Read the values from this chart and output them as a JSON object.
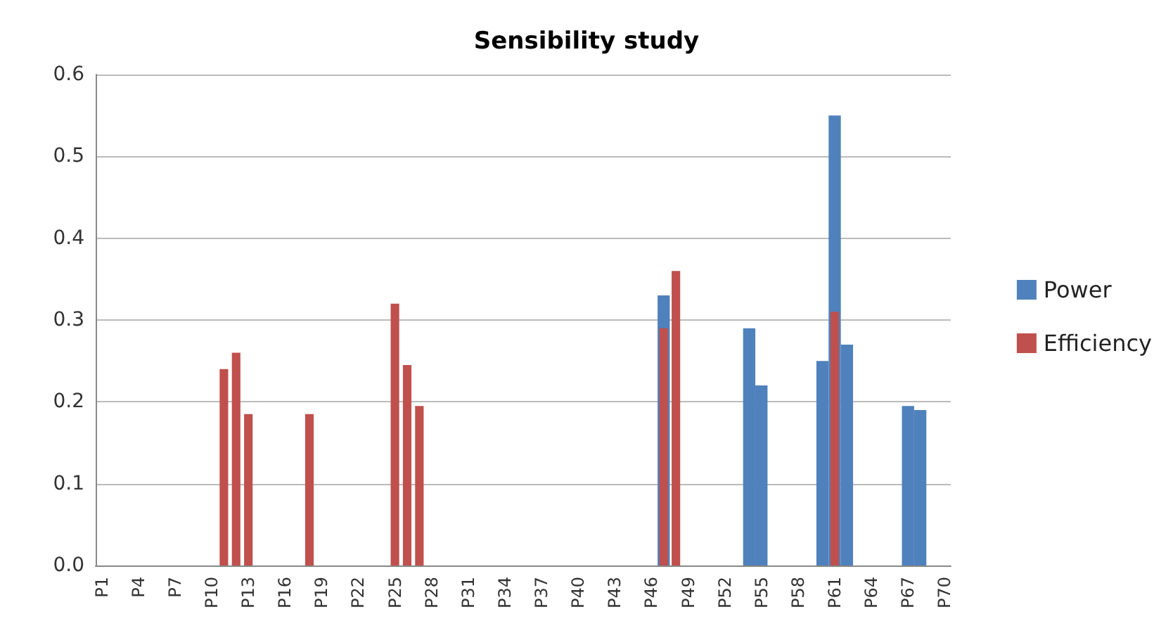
{
  "chart_data": {
    "type": "bar",
    "title": "Sensibility study",
    "categories": [
      "P1",
      null,
      null,
      "P4",
      null,
      null,
      "P7",
      null,
      null,
      "P10",
      null,
      null,
      "P13",
      null,
      null,
      "P16",
      null,
      null,
      "P19",
      null,
      null,
      "P22",
      null,
      null,
      "P25",
      null,
      null,
      "P28",
      null,
      null,
      "P31",
      null,
      null,
      "P34",
      null,
      null,
      "P37",
      null,
      null,
      "P40",
      null,
      null,
      "P43",
      null,
      null,
      "P46",
      null,
      null,
      "P49",
      null,
      null,
      "P52",
      null,
      null,
      "P55",
      null,
      null,
      "P58",
      null,
      null,
      "P61",
      null,
      null,
      "P64",
      null,
      null,
      "P67",
      null,
      null,
      "P70"
    ],
    "series": [
      {
        "name": "Power",
        "color": "#4f81bd",
        "values": [
          0,
          0,
          0,
          0,
          0,
          0,
          0,
          0,
          0,
          0,
          0,
          0,
          0,
          0,
          0,
          0,
          0,
          0,
          0,
          0,
          0,
          0,
          0,
          0,
          0,
          0,
          0,
          0,
          0,
          0,
          0,
          0,
          0,
          0,
          0,
          0,
          0,
          0,
          0,
          0,
          0,
          0,
          0,
          0,
          0,
          0,
          0.33,
          null,
          0,
          0,
          0,
          0,
          0,
          0.29,
          0.22,
          0,
          0,
          0,
          0,
          0.25,
          0.55,
          0.27,
          0,
          0,
          0,
          0,
          0.195,
          0.19,
          0,
          0
        ]
      },
      {
        "name": "Efficiency",
        "color": "#c0504d",
        "values": [
          0,
          0,
          0,
          0,
          0,
          0,
          0,
          0,
          0,
          0,
          0.24,
          0.26,
          0.185,
          0,
          0,
          0,
          0,
          0.185,
          0,
          0,
          0,
          0,
          0,
          0,
          0.32,
          0.245,
          0.195,
          0,
          0,
          0,
          0,
          0,
          0,
          0,
          0,
          0,
          0,
          0,
          0,
          0,
          0,
          0,
          0,
          0,
          0,
          0,
          0.29,
          0.36,
          0,
          0,
          0,
          0,
          0,
          0,
          0,
          0,
          0,
          0,
          0,
          0,
          0.31,
          0,
          0,
          0,
          0,
          0,
          0,
          0,
          0,
          0
        ]
      }
    ],
    "ylim": [
      0,
      0.6
    ],
    "yticks": [
      {
        "value": 0,
        "label": "0.0"
      },
      0.1,
      0.2,
      0.3,
      0.4,
      0.5,
      0.6
    ],
    "grid": "y",
    "legend": "right"
  }
}
